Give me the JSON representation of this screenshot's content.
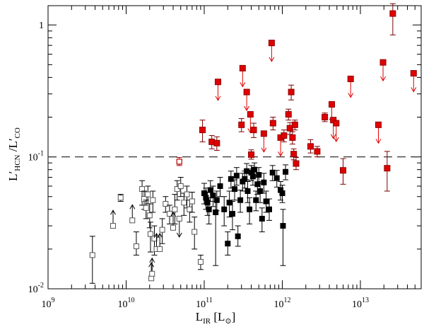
{
  "chart_data": {
    "type": "scatter",
    "xlabel": "L_IR [L_sun]",
    "ylabel": "L'_HCN / L'_CO",
    "x_scale": "log",
    "y_scale": "log",
    "xlim": [
      1000000000.0,
      60000000000000.0
    ],
    "ylim": [
      0.01,
      1.4
    ],
    "x_ticks": [
      {
        "v": 1000000000.0,
        "base": "10",
        "exp": "9"
      },
      {
        "v": 10000000000.0,
        "base": "10",
        "exp": "10"
      },
      {
        "v": 100000000000.0,
        "base": "10",
        "exp": "11"
      },
      {
        "v": 1000000000000.0,
        "base": "10",
        "exp": "12"
      },
      {
        "v": 10000000000000.0,
        "base": "10",
        "exp": "13"
      }
    ],
    "y_ticks": [
      {
        "v": 0.01,
        "base": "10",
        "exp": "-2"
      },
      {
        "v": 0.1,
        "base": "10",
        "exp": "-1"
      },
      {
        "v": 1,
        "base": "1",
        "exp": ""
      }
    ],
    "xlabel_parts": {
      "main": "L",
      "sub": "IR",
      "units": "[L",
      "units_close": "]",
      "sun": "⊙"
    },
    "ylabel_parts": {
      "num": "L′",
      "num_sub": "HCN",
      "slash": "/L′",
      "den_sub": "CO"
    },
    "reference_line": {
      "y": 0.1,
      "style": "dashed"
    },
    "colors": {
      "open_series": "#555555",
      "black_series": "#000000",
      "red_series": "#e00000",
      "red_open": "#b00000",
      "errbar_red": "#7a0000"
    },
    "series": [
      {
        "marker": "open-square",
        "points": [
          {
            "x": 3700000000.0,
            "y": 0.018,
            "ylo": 0.011,
            "yhi": 0.025
          },
          {
            "x": 6800000000.0,
            "y": 0.03,
            "lower_limit": true
          },
          {
            "x": 8500000000.0,
            "y": 0.049,
            "ylo": 0.046,
            "yhi": 0.052
          },
          {
            "x": 12000000000.0,
            "y": 0.033,
            "lower_limit": true
          },
          {
            "x": 13500000000.0,
            "y": 0.021,
            "ylo": 0.018,
            "yhi": 0.027
          },
          {
            "x": 16000000000.0,
            "y": 0.057,
            "ylo": 0.043,
            "yhi": 0.066
          },
          {
            "x": 17000000000.0,
            "y": 0.048,
            "ylo": 0.04,
            "yhi": 0.055
          },
          {
            "x": 18000000000.0,
            "y": 0.041,
            "ylo": 0.034,
            "yhi": 0.047
          },
          {
            "x": 19000000000.0,
            "y": 0.052,
            "ylo": 0.044,
            "yhi": 0.06
          },
          {
            "x": 20000000000.0,
            "y": 0.036,
            "ylo": 0.029,
            "yhi": 0.044
          },
          {
            "x": 20500000000.0,
            "y": 0.026,
            "ylo": 0.019,
            "yhi": 0.032
          },
          {
            "x": 21000000000.0,
            "y": 0.012,
            "lower_limit": true
          },
          {
            "x": 21500000000.0,
            "y": 0.013,
            "lower_limit": true
          },
          {
            "x": 22000000000.0,
            "y": 0.047,
            "ylo": 0.038,
            "yhi": 0.055
          },
          {
            "x": 23000000000.0,
            "y": 0.024,
            "ylo": 0.018,
            "yhi": 0.03
          },
          {
            "x": 24500000000.0,
            "y": 0.02,
            "lower_limit": true
          },
          {
            "x": 27000000000.0,
            "y": 0.02,
            "lower_limit": true
          },
          {
            "x": 29000000000.0,
            "y": 0.028,
            "ylo": 0.022,
            "yhi": 0.034
          },
          {
            "x": 32000000000.0,
            "y": 0.044,
            "ylo": 0.038,
            "yhi": 0.05
          },
          {
            "x": 36000000000.0,
            "y": 0.037,
            "ylo": 0.031,
            "yhi": 0.043
          },
          {
            "x": 40000000000.0,
            "y": 0.029,
            "lower_limit": true
          },
          {
            "x": 42000000000.0,
            "y": 0.04,
            "ylo": 0.031,
            "yhi": 0.052
          },
          {
            "x": 45000000000.0,
            "y": 0.057,
            "ylo": 0.047,
            "yhi": 0.066
          },
          {
            "x": 48000000000.0,
            "y": 0.034,
            "upper_limit": true
          },
          {
            "x": 50000000000.0,
            "y": 0.06,
            "ylo": 0.05,
            "yhi": 0.07
          },
          {
            "x": 55000000000.0,
            "y": 0.045,
            "ylo": 0.036,
            "yhi": 0.053
          },
          {
            "x": 60000000000.0,
            "y": 0.052,
            "ylo": 0.041,
            "yhi": 0.06
          },
          {
            "x": 65000000000.0,
            "y": 0.04,
            "ylo": 0.032,
            "yhi": 0.047
          },
          {
            "x": 70000000000.0,
            "y": 0.046,
            "ylo": 0.038,
            "yhi": 0.054
          },
          {
            "x": 75000000000.0,
            "y": 0.027,
            "ylo": 0.02,
            "yhi": 0.035
          },
          {
            "x": 90000000000.0,
            "y": 0.016,
            "ylo": 0.014,
            "yhi": 0.018
          }
        ]
      },
      {
        "marker": "open-square-red",
        "points": [
          {
            "x": 48000000000.0,
            "y": 0.092,
            "ylo": 0.086,
            "yhi": 0.099
          }
        ]
      },
      {
        "marker": "filled-square",
        "points": [
          {
            "x": 100000000000.0,
            "y": 0.053,
            "ylo": 0.044,
            "yhi": 0.063
          },
          {
            "x": 105000000000.0,
            "y": 0.049,
            "ylo": 0.04,
            "yhi": 0.058
          },
          {
            "x": 110000000000.0,
            "y": 0.045,
            "ylo": 0.036,
            "yhi": 0.054
          },
          {
            "x": 115000000000.0,
            "y": 0.04,
            "ylo": 0.031,
            "yhi": 0.049
          },
          {
            "x": 120000000000.0,
            "y": 0.056,
            "ylo": 0.046,
            "yhi": 0.066
          },
          {
            "x": 130000000000.0,
            "y": 0.051,
            "ylo": 0.042,
            "yhi": 0.06
          },
          {
            "x": 140000000000.0,
            "y": 0.038,
            "ylo": 0.015,
            "yhi": 0.046
          },
          {
            "x": 145000000000.0,
            "y": 0.047,
            "ylo": 0.039,
            "yhi": 0.055
          },
          {
            "x": 160000000000.0,
            "y": 0.06,
            "ylo": 0.05,
            "yhi": 0.07
          },
          {
            "x": 180000000000.0,
            "y": 0.04,
            "ylo": 0.03,
            "yhi": 0.05
          },
          {
            "x": 200000000000.0,
            "y": 0.022,
            "ylo": 0.018,
            "yhi": 0.027
          },
          {
            "x": 210000000000.0,
            "y": 0.045,
            "ylo": 0.035,
            "yhi": 0.055
          },
          {
            "x": 220000000000.0,
            "y": 0.068,
            "ylo": 0.058,
            "yhi": 0.078
          },
          {
            "x": 230000000000.0,
            "y": 0.037,
            "ylo": 0.028,
            "yhi": 0.046
          },
          {
            "x": 245000000000.0,
            "y": 0.057,
            "ylo": 0.047,
            "yhi": 0.067
          },
          {
            "x": 260000000000.0,
            "y": 0.072,
            "ylo": 0.061,
            "yhi": 0.083
          },
          {
            "x": 270000000000.0,
            "y": 0.025,
            "ylo": 0.021,
            "yhi": 0.03
          },
          {
            "x": 290000000000.0,
            "y": 0.047,
            "ylo": 0.038,
            "yhi": 0.056
          },
          {
            "x": 310000000000.0,
            "y": 0.065,
            "ylo": 0.055,
            "yhi": 0.075
          },
          {
            "x": 330000000000.0,
            "y": 0.068,
            "ylo": 0.058,
            "yhi": 0.078
          },
          {
            "x": 350000000000.0,
            "y": 0.078,
            "ylo": 0.067,
            "yhi": 0.089
          },
          {
            "x": 360000000000.0,
            "y": 0.055,
            "ylo": 0.045,
            "yhi": 0.065
          },
          {
            "x": 380000000000.0,
            "y": 0.04,
            "ylo": 0.031,
            "yhi": 0.049
          },
          {
            "x": 400000000000.0,
            "y": 0.076,
            "ylo": 0.066,
            "yhi": 0.086
          },
          {
            "x": 420000000000.0,
            "y": 0.071,
            "ylo": 0.061,
            "yhi": 0.081
          },
          {
            "x": 440000000000.0,
            "y": 0.08,
            "ylo": 0.07,
            "yhi": 0.09
          },
          {
            "x": 460000000000.0,
            "y": 0.047,
            "ylo": 0.039,
            "yhi": 0.055
          },
          {
            "x": 480000000000.0,
            "y": 0.062,
            "ylo": 0.052,
            "yhi": 0.072
          },
          {
            "x": 500000000000.0,
            "y": 0.073,
            "ylo": 0.063,
            "yhi": 0.083
          },
          {
            "x": 520000000000.0,
            "y": 0.055,
            "ylo": 0.045,
            "yhi": 0.065
          },
          {
            "x": 550000000000.0,
            "y": 0.034,
            "ylo": 0.027,
            "yhi": 0.041
          },
          {
            "x": 580000000000.0,
            "y": 0.064,
            "ylo": 0.053,
            "yhi": 0.075
          },
          {
            "x": 620000000000.0,
            "y": 0.046,
            "ylo": 0.038,
            "yhi": 0.055
          },
          {
            "x": 680000000000.0,
            "y": 0.04,
            "ylo": 0.033,
            "yhi": 0.048
          },
          {
            "x": 750000000000.0,
            "y": 0.076,
            "ylo": 0.066,
            "yhi": 0.086
          },
          {
            "x": 850000000000.0,
            "y": 0.069,
            "ylo": 0.059,
            "yhi": 0.079
          },
          {
            "x": 950000000000.0,
            "y": 0.056,
            "ylo": 0.047,
            "yhi": 0.065
          },
          {
            "x": 1000000000000.0,
            "y": 0.053,
            "ylo": 0.045,
            "yhi": 0.061
          },
          {
            "x": 1020000000000.0,
            "y": 0.03,
            "ylo": 0.015,
            "yhi": 0.04
          },
          {
            "x": 1100000000000.0,
            "y": 0.077,
            "ylo": 0.067,
            "yhi": 0.087
          }
        ]
      },
      {
        "marker": "filled-square-red",
        "points": [
          {
            "x": 95000000000.0,
            "y": 0.16,
            "ylo": 0.13,
            "yhi": 0.19
          },
          {
            "x": 125000000000.0,
            "y": 0.13,
            "ylo": 0.115,
            "yhi": 0.145
          },
          {
            "x": 145000000000.0,
            "y": 0.127,
            "ylo": 0.112,
            "yhi": 0.142
          },
          {
            "x": 150000000000.0,
            "y": 0.37,
            "upper_limit": true
          },
          {
            "x": 300000000000.0,
            "y": 0.175,
            "ylo": 0.155,
            "yhi": 0.195
          },
          {
            "x": 310000000000.0,
            "y": 0.47,
            "upper_limit": true
          },
          {
            "x": 350000000000.0,
            "y": 0.31,
            "upper_limit": true
          },
          {
            "x": 390000000000.0,
            "y": 0.21,
            "upper_limit": true
          },
          {
            "x": 400000000000.0,
            "y": 0.104,
            "ylo": 0.096,
            "yhi": 0.113
          },
          {
            "x": 430000000000.0,
            "y": 0.16,
            "ylo": 0.14,
            "yhi": 0.18
          },
          {
            "x": 580000000000.0,
            "y": 0.15,
            "upper_limit": true
          },
          {
            "x": 730000000000.0,
            "y": 0.73,
            "upper_limit": true
          },
          {
            "x": 760000000000.0,
            "y": 0.18,
            "ylo": 0.16,
            "yhi": 0.2
          },
          {
            "x": 950000000000.0,
            "y": 0.14,
            "upper_limit": true
          },
          {
            "x": 1050000000000.0,
            "y": 0.145,
            "ylo": 0.13,
            "yhi": 0.16
          },
          {
            "x": 1200000000000.0,
            "y": 0.21,
            "ylo": 0.19,
            "yhi": 0.23
          },
          {
            "x": 1250000000000.0,
            "y": 0.165,
            "ylo": 0.148,
            "yhi": 0.182
          },
          {
            "x": 1300000000000.0,
            "y": 0.31,
            "ylo": 0.27,
            "yhi": 0.35
          },
          {
            "x": 1350000000000.0,
            "y": 0.14,
            "ylo": 0.125,
            "yhi": 0.155
          },
          {
            "x": 1400000000000.0,
            "y": 0.105,
            "ylo": 0.095,
            "yhi": 0.115
          },
          {
            "x": 1450000000000.0,
            "y": 0.175,
            "ylo": 0.16,
            "yhi": 0.19
          },
          {
            "x": 1500000000000.0,
            "y": 0.089,
            "ylo": 0.08,
            "yhi": 0.099
          },
          {
            "x": 2300000000000.0,
            "y": 0.12,
            "ylo": 0.107,
            "yhi": 0.135
          },
          {
            "x": 2800000000000.0,
            "y": 0.11,
            "ylo": 0.1,
            "yhi": 0.12
          },
          {
            "x": 3500000000000.0,
            "y": 0.2,
            "ylo": 0.185,
            "yhi": 0.215
          },
          {
            "x": 4300000000000.0,
            "y": 0.25,
            "upper_limit": true
          },
          {
            "x": 4500000000000.0,
            "y": 0.19,
            "upper_limit": true
          },
          {
            "x": 4900000000000.0,
            "y": 0.18,
            "upper_limit": true
          },
          {
            "x": 6000000000000.0,
            "y": 0.079,
            "ylo": 0.062,
            "yhi": 0.097
          },
          {
            "x": 7500000000000.0,
            "y": 0.39,
            "upper_limit": true
          },
          {
            "x": 17000000000000.0,
            "y": 0.175,
            "upper_limit": true
          },
          {
            "x": 19500000000000.0,
            "y": 0.52,
            "upper_limit": true
          },
          {
            "x": 22000000000000.0,
            "y": 0.082,
            "ylo": 0.055,
            "yhi": 0.11
          },
          {
            "x": 26000000000000.0,
            "y": 1.22,
            "ylo": 0.84,
            "yhi": 1.45
          },
          {
            "x": 48000000000000.0,
            "y": 0.43,
            "upper_limit": true
          }
        ]
      }
    ]
  }
}
